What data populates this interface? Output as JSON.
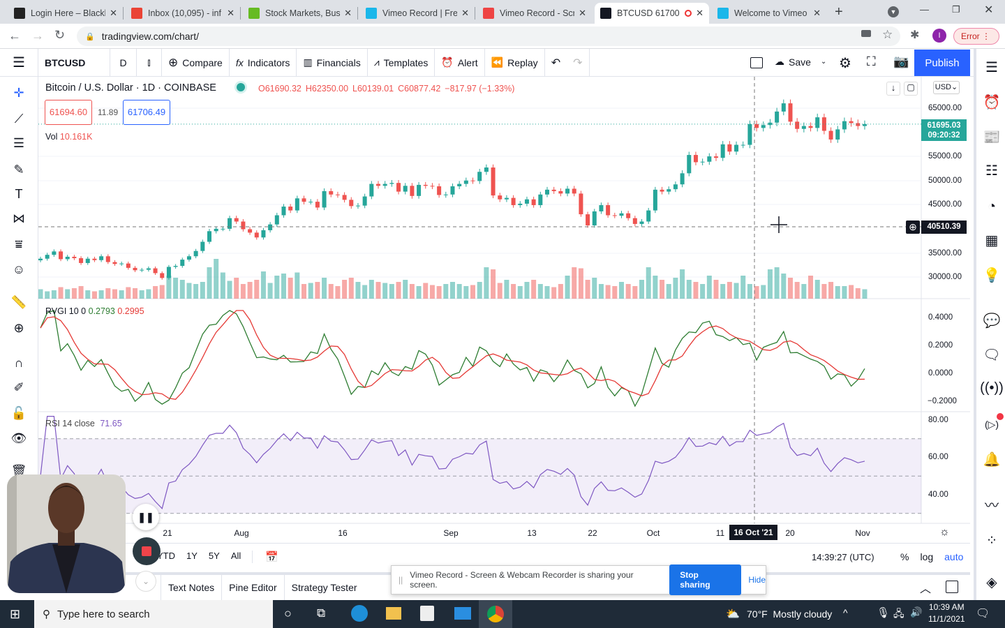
{
  "browser": {
    "tabs": [
      {
        "label": "Login Here – Blackb",
        "icon": "blackboard-icon",
        "color": "#222"
      },
      {
        "label": "Inbox (10,095) - inf",
        "icon": "gmail-icon",
        "color": "#ea4335"
      },
      {
        "label": "Stock Markets, Busi",
        "icon": "cnbc-icon",
        "color": "#6b2"
      },
      {
        "label": "Vimeo Record | Fre",
        "icon": "vimeo-icon",
        "color": "#1ab7ea"
      },
      {
        "label": "Vimeo Record - Scr",
        "icon": "chrome-webstore-icon",
        "color": "#e44"
      },
      {
        "label": "BTCUSD 61700",
        "icon": "tradingview-icon",
        "color": "#131722"
      },
      {
        "label": "Welcome to Vimeo",
        "icon": "vimeo-icon",
        "color": "#1ab7ea"
      }
    ],
    "url": "tradingview.com/chart/",
    "error_label": "Error",
    "profile_initial": "I"
  },
  "toolbar": {
    "symbol": "BTCUSD",
    "interval": "D",
    "compare": "Compare",
    "indicators": "Indicators",
    "financials": "Financials",
    "templates": "Templates",
    "alert": "Alert",
    "replay": "Replay",
    "save": "Save",
    "publish": "Publish"
  },
  "legend": {
    "title": "Bitcoin / U.S. Dollar · 1D · COINBASE",
    "open": "O61690.32",
    "high": "H62350.00",
    "low": "L60139.01",
    "close": "C60877.42",
    "change": "−817.97 (−1.33%)",
    "bid": "61694.60",
    "spread": "11.89",
    "ask": "61706.49",
    "vol_label": "Vol",
    "vol_value": "10.161K",
    "rvgi_label": "RVGI 10 0",
    "rvgi_v1": "0.2793",
    "rvgi_v2": "0.2995",
    "rsi_label": "RSI 14 close",
    "rsi_value": "71.65"
  },
  "price_axis": {
    "currency": "USD",
    "labels": [
      "65000.00",
      "55000.00",
      "50000.00",
      "45000.00",
      "35000.00",
      "30000.00"
    ],
    "last_price": "61695.03",
    "countdown": "09:20:32",
    "crosshair_price": "40510.39",
    "rvgi_labels": [
      "0.4000",
      "0.2000",
      "0.0000",
      "−0.2000"
    ],
    "rsi_labels": [
      "80.00",
      "60.00",
      "40.00"
    ]
  },
  "time_axis": {
    "labels": [
      "21",
      "Aug",
      "16",
      "Sep",
      "13",
      "22",
      "Oct",
      "11",
      "20",
      "Nov"
    ],
    "crosshair_date": "16 Oct '21"
  },
  "bottom": {
    "ranges": [
      "YTD",
      "1Y",
      "5Y",
      "All"
    ],
    "clock": "14:39:27 (UTC)",
    "percent": "%",
    "log": "log",
    "auto": "auto"
  },
  "panel_tabs": [
    "Text Notes",
    "Pine Editor",
    "Strategy Tester"
  ],
  "share_banner": {
    "text": "Vimeo Record - Screen & Webcam Recorder is sharing your screen.",
    "stop": "Stop sharing",
    "hide": "Hide"
  },
  "taskbar": {
    "search_placeholder": "Type here to search",
    "weather": "70°F  Mostly cloudy",
    "time": "10:39 AM",
    "date": "11/1/2021"
  },
  "colors": {
    "up": "#26a69a",
    "down": "#ef5350",
    "accent": "#2962ff",
    "rvgi": "#2e7d32",
    "rvgi_signal": "#e53935",
    "rsi": "#7e57c2"
  },
  "chart_data": {
    "type": "candlestick",
    "symbol": "BTCUSD",
    "interval": "1D",
    "x_start": "2021-07-02",
    "x_end": "2021-11-01",
    "ylim": [
      28000,
      67000
    ],
    "close": [
      33.8,
      34.6,
      35.3,
      33.7,
      34.2,
      33.9,
      32.9,
      33.8,
      33.5,
      34.3,
      33.1,
      32.7,
      32.8,
      31.9,
      31.4,
      31.5,
      31.8,
      30.8,
      29.8,
      32.1,
      32.3,
      33.6,
      34.3,
      35.4,
      37.3,
      39.5,
      40.0,
      40.0,
      42.2,
      41.5,
      39.9,
      39.2,
      38.2,
      39.7,
      40.9,
      42.8,
      44.6,
      43.8,
      46.3,
      45.6,
      45.6,
      44.4,
      47.8,
      47.1,
      47.0,
      46.0,
      44.7,
      44.8,
      46.7,
      49.3,
      48.9,
      49.3,
      49.5,
      47.7,
      48.9,
      46.8,
      49.1,
      48.9,
      48.8,
      47.0,
      47.1,
      48.8,
      49.3,
      50.0,
      49.9,
      51.8,
      52.7,
      46.9,
      46.1,
      46.4,
      44.9,
      45.2,
      46.1,
      44.9,
      47.1,
      48.1,
      47.8,
      47.3,
      48.3,
      47.3,
      43.0,
      40.7,
      43.6,
      44.9,
      42.8,
      42.7,
      43.2,
      42.2,
      41.0,
      41.5,
      43.8,
      48.1,
      47.7,
      48.2,
      49.2,
      51.5,
      55.3,
      53.8,
      53.9,
      55.0,
      54.7,
      57.5,
      56.0,
      57.4,
      57.4,
      61.7,
      60.9,
      61.5,
      62.0,
      64.3,
      66.0,
      62.2,
      60.7,
      61.3,
      60.9,
      63.1,
      60.3,
      58.5,
      60.6,
      62.3,
      61.9,
      61.3,
      61.7
    ],
    "close_unit": "thousand USD",
    "volume_k": [
      9,
      7,
      8,
      11,
      9,
      10,
      12,
      8,
      7,
      8,
      10,
      9,
      8,
      11,
      10,
      8,
      9,
      12,
      13,
      22,
      20,
      18,
      15,
      14,
      16,
      30,
      38,
      25,
      17,
      20,
      14,
      16,
      18,
      26,
      15,
      22,
      24,
      20,
      25,
      14,
      15,
      16,
      20,
      14,
      12,
      18,
      20,
      16,
      13,
      18,
      16,
      15,
      14,
      16,
      18,
      14,
      12,
      15,
      13,
      12,
      14,
      16,
      14,
      12,
      13,
      16,
      30,
      28,
      15,
      18,
      14,
      12,
      16,
      18,
      14,
      12,
      11,
      14,
      22,
      30,
      29,
      18,
      20,
      14,
      13,
      12,
      16,
      14,
      12,
      18,
      30,
      22,
      18,
      14,
      20,
      28,
      18,
      16,
      14,
      22,
      18,
      14,
      16,
      15,
      22,
      14,
      12,
      13,
      28,
      30,
      24,
      20,
      16,
      14,
      22,
      18,
      14,
      16,
      12,
      12,
      13,
      10,
      9
    ],
    "indicators": [
      "RVGI 10",
      "RSI 14"
    ],
    "rsi_bands": [
      70,
      30
    ]
  }
}
